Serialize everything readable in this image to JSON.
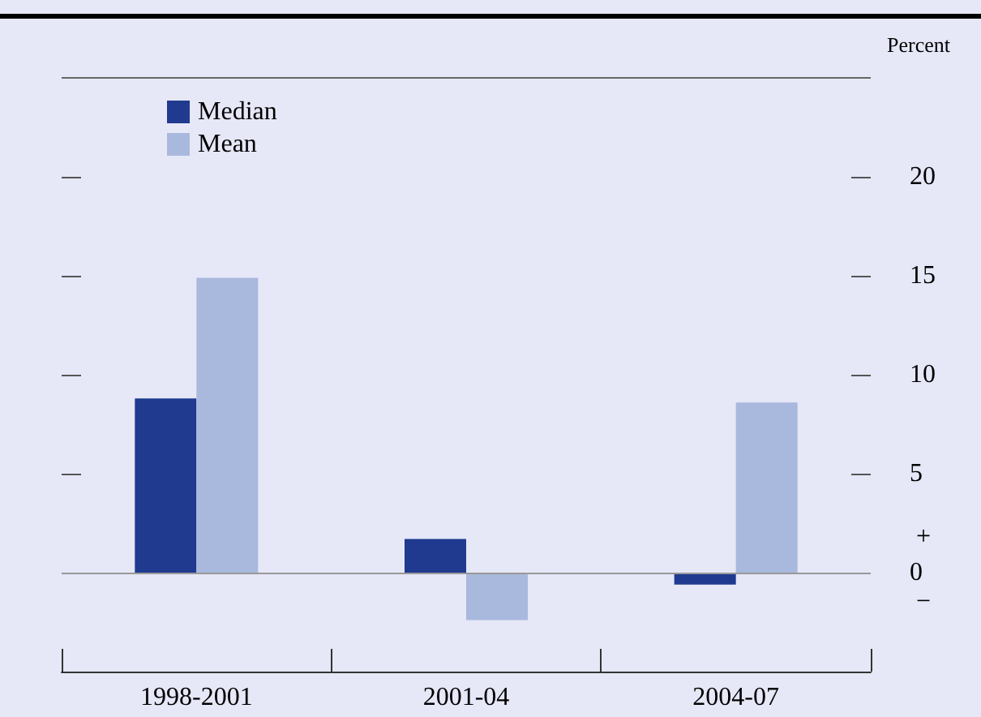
{
  "chart_data": {
    "type": "bar",
    "ylabel": "Percent",
    "categories": [
      "1998-2001",
      "2001-04",
      "2004-07"
    ],
    "series": [
      {
        "name": "Median",
        "color": "#1f3a8f",
        "values": [
          8.8,
          1.7,
          -0.6
        ]
      },
      {
        "name": "Mean",
        "color": "#a9b9dd",
        "values": [
          14.9,
          -2.4,
          8.6
        ]
      }
    ],
    "ylim": [
      -5,
      25
    ],
    "yticks": [
      0,
      5,
      10,
      15,
      20
    ],
    "grid": false,
    "ref_lines": [
      {
        "axis": "y",
        "value": 0,
        "color": "#999999"
      }
    ],
    "legend": "top left",
    "annotations": [
      "+",
      "−"
    ]
  }
}
